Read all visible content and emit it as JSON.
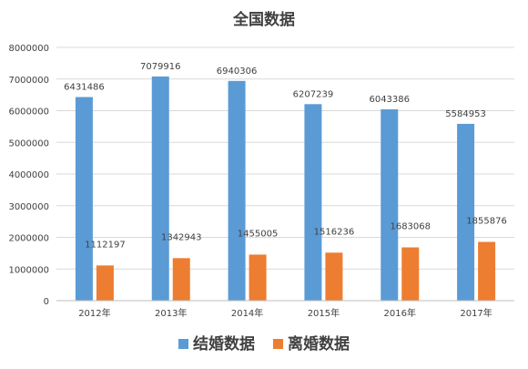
{
  "chart_data": {
    "type": "bar",
    "title": "全国数据",
    "categories": [
      "2012年",
      "2013年",
      "2014年",
      "2015年",
      "2016年",
      "2017年"
    ],
    "series": [
      {
        "name": "结婚数据",
        "color": "#5B9BD5",
        "values": [
          6431486,
          7079916,
          6940306,
          6207239,
          6043386,
          5584953
        ]
      },
      {
        "name": "离婚数据",
        "color": "#ED7D31",
        "values": [
          1112197,
          1342943,
          1455005,
          1516236,
          1683068,
          1855876
        ]
      }
    ],
    "ylim": [
      0,
      8000000
    ],
    "yticks": [
      "0",
      "1000000",
      "2000000",
      "3000000",
      "4000000",
      "5000000",
      "6000000",
      "7000000",
      "8000000"
    ],
    "grid": true,
    "legend_position": "bottom"
  }
}
